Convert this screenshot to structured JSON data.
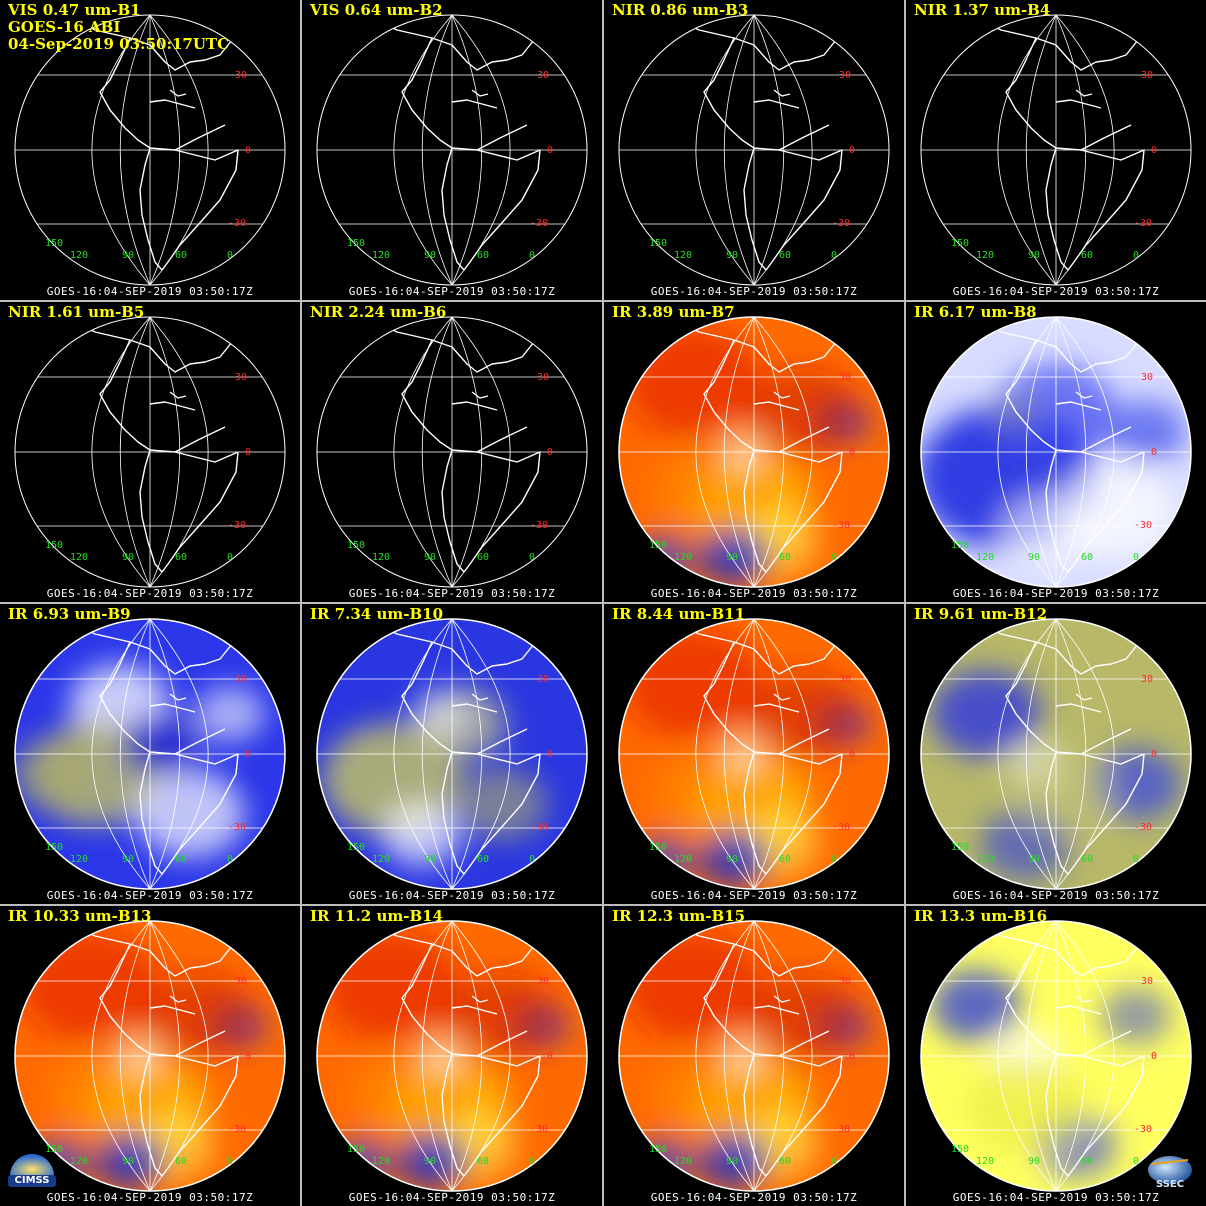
{
  "header": {
    "satellite": "GOES-16 ABI",
    "datetime": "04-Sep-2019 03:50:17UTC"
  },
  "footer_text": "GOES-16:04-SEP-2019 03:50:17Z",
  "lat_labels": [
    "30",
    "0",
    "-30"
  ],
  "lon_labels": [
    "150",
    "120",
    "90",
    "60",
    "0"
  ],
  "panels": [
    {
      "title": "VIS 0.47 um-B1",
      "style": "vis"
    },
    {
      "title": "VIS 0.64 um-B2",
      "style": "vis"
    },
    {
      "title": "NIR 0.86 um-B3",
      "style": "vis"
    },
    {
      "title": "NIR 1.37 um-B4",
      "style": "vis"
    },
    {
      "title": "NIR 1.61 um-B5",
      "style": "vis"
    },
    {
      "title": "NIR 2.24 um-B6",
      "style": "vis"
    },
    {
      "title": "IR 3.89 um-B7",
      "style": "warm"
    },
    {
      "title": "IR 6.17 um-B8",
      "style": "wv_light"
    },
    {
      "title": "IR 6.93 um-B9",
      "style": "wv"
    },
    {
      "title": "IR 7.34 um-B10",
      "style": "wv_olive"
    },
    {
      "title": "IR 8.44 um-B11",
      "style": "warm"
    },
    {
      "title": "IR 9.61 um-B12",
      "style": "olive"
    },
    {
      "title": "IR 10.33 um-B13",
      "style": "warm"
    },
    {
      "title": "IR 11.2 um-B14",
      "style": "warm"
    },
    {
      "title": "IR 12.3 um-B15",
      "style": "warm"
    },
    {
      "title": "IR 13.3 um-B16",
      "style": "yellow"
    }
  ],
  "logos": {
    "left": "CIMSS",
    "right": "SSEC"
  },
  "colors": {
    "title": "#ffff00",
    "lat_label": "#ff2a2a",
    "lon_label": "#22dd22",
    "grid_lines": "#ffffff",
    "divider": "#bdbdbd"
  }
}
